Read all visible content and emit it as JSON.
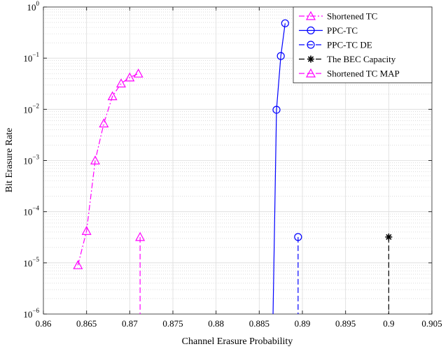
{
  "chart_data": {
    "type": "line",
    "xlabel": "Channel Erasure Probability",
    "ylabel": "Bit Erasure Rate",
    "log_y": true,
    "grid": true,
    "legend": "upper right",
    "xlim": [
      0.86,
      0.905
    ],
    "xticks": [
      0.86,
      0.865,
      0.87,
      0.875,
      0.88,
      0.885,
      0.89,
      0.895,
      0.9,
      0.905
    ],
    "ylim": [
      1e-06,
      1
    ],
    "yticks": [
      {
        "value": 1e-06,
        "label": "10",
        "exponent": "−6"
      },
      {
        "value": 1e-05,
        "label": "10",
        "exponent": "−5"
      },
      {
        "value": 0.0001,
        "label": "10",
        "exponent": "−4"
      },
      {
        "value": 0.001,
        "label": "10",
        "exponent": "−3"
      },
      {
        "value": 0.01,
        "label": "10",
        "exponent": "−2"
      },
      {
        "value": 0.1,
        "label": "10",
        "exponent": "−1"
      },
      {
        "value": 1,
        "label": "10",
        "exponent": "0"
      }
    ],
    "series": [
      {
        "name": "Shortened TC",
        "color": "#ff00ff",
        "line": "dashdot",
        "marker": "triangle",
        "x": [
          0.864,
          0.865,
          0.866,
          0.867,
          0.868,
          0.869,
          0.87,
          0.871
        ],
        "values": [
          9e-06,
          4.2e-05,
          0.001,
          0.0053,
          0.018,
          0.032,
          0.042,
          0.05
        ]
      },
      {
        "name": "PPC-TC",
        "color": "#0000ff",
        "line": "solid",
        "marker": "circle",
        "x": [
          0.8866,
          0.887,
          0.8875,
          0.888
        ],
        "values": [
          1e-06,
          0.0098,
          0.11,
          0.48
        ]
      },
      {
        "name": "PPC-TC DE",
        "color": "#0000ff",
        "line": "dashed",
        "marker": "circle",
        "x": [
          0.8895,
          0.8895
        ],
        "values": [
          3.2e-05,
          1e-06
        ]
      },
      {
        "name": "The BEC Capacity",
        "color": "#000000",
        "line": "dashed",
        "marker": "asterisk",
        "x": [
          0.9,
          0.9
        ],
        "values": [
          3.2e-05,
          1e-06
        ]
      },
      {
        "name": "Shortened TC MAP",
        "color": "#ff00ff",
        "line": "dashed",
        "marker": "triangle",
        "x": [
          0.8712,
          0.8712
        ],
        "values": [
          3.2e-05,
          1e-06
        ]
      }
    ]
  }
}
